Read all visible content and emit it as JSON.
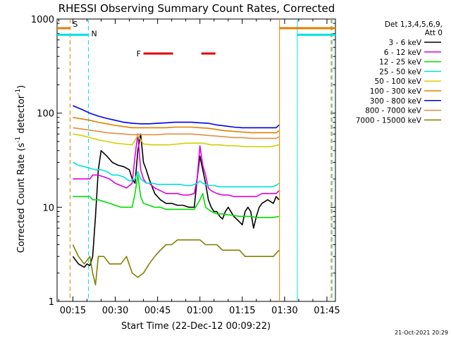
{
  "chart_data": {
    "type": "line",
    "title": "RHESSI Observing Summary Count Rates, Corrected",
    "xlabel": "Start Time (22-Dec-12 00:09:22)",
    "ylabel_main": "Corrected Count Rate (s",
    "ylabel_sup1": "-1",
    "ylabel_mid": " detector",
    "ylabel_sup2": "-1",
    "ylabel_end": ")",
    "yscale": "log",
    "ylim": [
      1,
      1000
    ],
    "xlim_min": [
      9.4,
      108
    ],
    "x_ticks": [
      {
        "min": 15,
        "label": "00:15"
      },
      {
        "min": 30,
        "label": "00:30"
      },
      {
        "min": 45,
        "label": "00:45"
      },
      {
        "min": 60,
        "label": "01:00"
      },
      {
        "min": 75,
        "label": "01:15"
      },
      {
        "min": 90,
        "label": "01:30"
      },
      {
        "min": 105,
        "label": "01:45"
      }
    ],
    "y_ticks": [
      {
        "value": 1,
        "label": "1"
      },
      {
        "value": 10,
        "label": "10"
      },
      {
        "value": 100,
        "label": "100"
      },
      {
        "value": 1000,
        "label": "1000"
      }
    ],
    "legend_header": [
      "Det 1,3,4,5,6,9,",
      "Att 0"
    ],
    "series": [
      {
        "name": "3 - 6 keV",
        "color": "#000000",
        "x": [
          15,
          17,
          19,
          20,
          21,
          22,
          23,
          24,
          25,
          27,
          29,
          31,
          33,
          35,
          36,
          37,
          38,
          39,
          40,
          41,
          42,
          44,
          46,
          48,
          50,
          52,
          54,
          56,
          58,
          59,
          60,
          61,
          62,
          63,
          64,
          65,
          66,
          67,
          68,
          69,
          70,
          72,
          74,
          75,
          76,
          77,
          78,
          79,
          80,
          81,
          82,
          84,
          86,
          87,
          88
        ],
        "y": [
          3,
          2.5,
          2.3,
          2.5,
          2.4,
          3,
          8,
          25,
          40,
          35,
          30,
          28,
          27,
          25,
          20,
          18,
          40,
          60,
          30,
          25,
          20,
          14,
          12,
          11,
          11,
          10.5,
          10.5,
          10,
          10,
          20,
          35,
          25,
          18,
          12,
          10,
          9,
          9,
          8,
          7.5,
          9,
          10,
          8,
          7,
          6.5,
          9,
          10,
          9,
          6,
          8,
          10,
          11,
          12,
          11,
          13,
          12
        ]
      },
      {
        "name": "6 - 12 keV",
        "color": "#e000e0",
        "x": [
          15,
          17,
          19,
          20,
          21,
          22,
          23,
          24,
          26,
          28,
          30,
          32,
          34,
          36,
          37,
          38,
          39,
          40,
          41,
          42,
          44,
          46,
          48,
          50,
          52,
          54,
          56,
          58,
          59,
          60,
          61,
          62,
          63,
          64,
          66,
          68,
          70,
          72,
          74,
          76,
          78,
          80,
          82,
          84,
          86,
          87,
          88
        ],
        "y": [
          20,
          20,
          20,
          20,
          20,
          22,
          22,
          22,
          21,
          20,
          18,
          17,
          16,
          18,
          35,
          60,
          25,
          20,
          18,
          18,
          16,
          15,
          14,
          14,
          14,
          13.5,
          13.5,
          14,
          20,
          45,
          28,
          22,
          16,
          15,
          14,
          13.5,
          13.5,
          13,
          13,
          13,
          13,
          13,
          14,
          14,
          14,
          14,
          15
        ]
      },
      {
        "name": "12 - 25 keV",
        "color": "#00e000",
        "x": [
          15,
          17,
          19,
          20,
          21,
          22,
          23,
          24,
          26,
          28,
          30,
          32,
          34,
          36,
          37,
          38,
          39,
          40,
          42,
          44,
          46,
          48,
          50,
          52,
          54,
          56,
          58,
          60,
          61,
          62,
          64,
          66,
          68,
          70,
          72,
          74,
          76,
          78,
          80,
          82,
          84,
          86,
          88
        ],
        "y": [
          13,
          13,
          13,
          13,
          13,
          12,
          12,
          12,
          11.5,
          11,
          10.5,
          10,
          10,
          10,
          14,
          22,
          13,
          11,
          10.5,
          10,
          10,
          9.5,
          9.5,
          9.5,
          9.5,
          9.5,
          9.5,
          12,
          14,
          10,
          9,
          8.5,
          8.5,
          8.3,
          8.2,
          8,
          8,
          8,
          7.8,
          7.8,
          7.8,
          7.8,
          8
        ]
      },
      {
        "name": "25 - 50 keV",
        "color": "#00e0e0",
        "x": [
          15,
          17,
          19,
          21,
          23,
          25,
          27,
          29,
          31,
          33,
          35,
          37,
          38,
          39,
          41,
          43,
          45,
          47,
          49,
          51,
          53,
          55,
          57,
          59,
          60,
          61,
          63,
          65,
          67,
          69,
          71,
          73,
          75,
          77,
          79,
          81,
          83,
          85,
          87,
          88
        ],
        "y": [
          30,
          28,
          27,
          26,
          25,
          25,
          24,
          22,
          22,
          21,
          19,
          20,
          24,
          20,
          18,
          18,
          17.5,
          17.5,
          17.5,
          17.5,
          17.5,
          17,
          17,
          18,
          19,
          18,
          17,
          17,
          16.5,
          16.5,
          16.5,
          16.5,
          16.5,
          16.5,
          16.5,
          16.5,
          16.5,
          16.5,
          17,
          18
        ]
      },
      {
        "name": "50 - 100 keV",
        "color": "#d0d000",
        "x": [
          15,
          18,
          21,
          24,
          27,
          30,
          33,
          36,
          38,
          40,
          43,
          46,
          49,
          52,
          55,
          58,
          61,
          64,
          67,
          70,
          73,
          76,
          79,
          82,
          85,
          88
        ],
        "y": [
          60,
          58,
          55,
          52,
          50,
          48,
          47,
          46,
          58,
          47,
          46,
          46,
          46,
          47,
          48,
          48,
          48,
          46,
          46,
          45,
          45,
          44,
          44,
          44,
          44,
          46
        ]
      },
      {
        "name": "100 - 300 keV",
        "color": "#e08000",
        "x": [
          15,
          18,
          21,
          24,
          27,
          30,
          33,
          36,
          39,
          42,
          45,
          48,
          51,
          54,
          57,
          60,
          63,
          66,
          69,
          72,
          75,
          78,
          81,
          84,
          87,
          88
        ],
        "y": [
          90,
          87,
          84,
          80,
          77,
          74,
          72,
          70,
          70,
          70,
          70,
          70,
          71,
          71,
          71,
          70,
          69,
          67,
          65,
          64,
          63,
          62,
          62,
          62,
          62,
          65
        ]
      },
      {
        "name": "300 - 800 keV",
        "color": "#0000e0",
        "x": [
          15,
          18,
          21,
          24,
          27,
          30,
          33,
          36,
          39,
          42,
          45,
          48,
          51,
          54,
          57,
          60,
          63,
          66,
          69,
          72,
          75,
          78,
          81,
          84,
          87,
          88
        ],
        "y": [
          120,
          110,
          100,
          93,
          88,
          84,
          80,
          78,
          77,
          77,
          78,
          79,
          80,
          80,
          80,
          79,
          78,
          75,
          73,
          71,
          70,
          70,
          70,
          70,
          70,
          75
        ]
      },
      {
        "name": "800 - 7000 keV",
        "color": "#e09040",
        "x": [
          15,
          18,
          21,
          24,
          27,
          30,
          33,
          36,
          39,
          42,
          45,
          48,
          51,
          54,
          57,
          60,
          63,
          66,
          69,
          72,
          75,
          78,
          81,
          84,
          87,
          88
        ],
        "y": [
          70,
          68,
          66,
          64,
          62,
          61,
          60,
          59,
          59,
          59,
          59,
          60,
          60,
          60,
          60,
          59,
          58,
          57,
          56,
          55,
          55,
          54,
          54,
          54,
          54,
          56
        ]
      },
      {
        "name": "7000 - 15000 keV",
        "color": "#808000",
        "x": [
          15,
          17,
          19,
          21,
          22,
          23,
          24,
          26,
          28,
          30,
          32,
          34,
          36,
          38,
          40,
          42,
          44,
          46,
          48,
          50,
          52,
          54,
          56,
          58,
          60,
          62,
          64,
          66,
          68,
          70,
          72,
          74,
          76,
          78,
          80,
          82,
          84,
          86,
          88
        ],
        "y": [
          4,
          3,
          2.5,
          3,
          2,
          1.5,
          3,
          3,
          2.5,
          2.5,
          2.5,
          3,
          2,
          1.8,
          2,
          2.5,
          3,
          3.5,
          4,
          4,
          4.5,
          4.5,
          4.5,
          4.5,
          4.5,
          4,
          4,
          4,
          3.5,
          3.5,
          3.5,
          3.5,
          3,
          3,
          3,
          3,
          3,
          3,
          3.5
        ]
      }
    ],
    "flag_labels": [
      {
        "text": "S",
        "color": "#e08000"
      },
      {
        "text": "N",
        "color": "#00e0e0"
      },
      {
        "text": "F",
        "color": "#e00000"
      }
    ],
    "flag_segments": [
      {
        "color": "#e08000",
        "value": 800,
        "from": 9.4,
        "to": 14
      },
      {
        "color": "#e08000",
        "value": 800,
        "from": 88.2,
        "to": 108
      },
      {
        "color": "#00e0e0",
        "value": 680,
        "from": 9.4,
        "to": 20.5
      },
      {
        "color": "#00e0e0",
        "value": 680,
        "from": 94.5,
        "to": 108
      },
      {
        "color": "#e00000",
        "value": 430,
        "from": 40,
        "to": 50.5
      },
      {
        "color": "#e00000",
        "value": 430,
        "from": 60.5,
        "to": 65.5
      }
    ],
    "vlines": [
      {
        "min": 14,
        "color": "#e08000",
        "dash": true
      },
      {
        "min": 20.5,
        "color": "#00e0e0",
        "dash": true
      },
      {
        "min": 88.2,
        "color": "#e08000",
        "dash": false
      },
      {
        "min": 94.5,
        "color": "#00e0e0",
        "dash": false
      },
      {
        "min": 106.5,
        "color": "#e08000",
        "dash": true
      },
      {
        "min": 106.8,
        "color": "#00e0e0",
        "dash": true
      }
    ],
    "footer_date": "21-Oct-2021 20:29"
  }
}
